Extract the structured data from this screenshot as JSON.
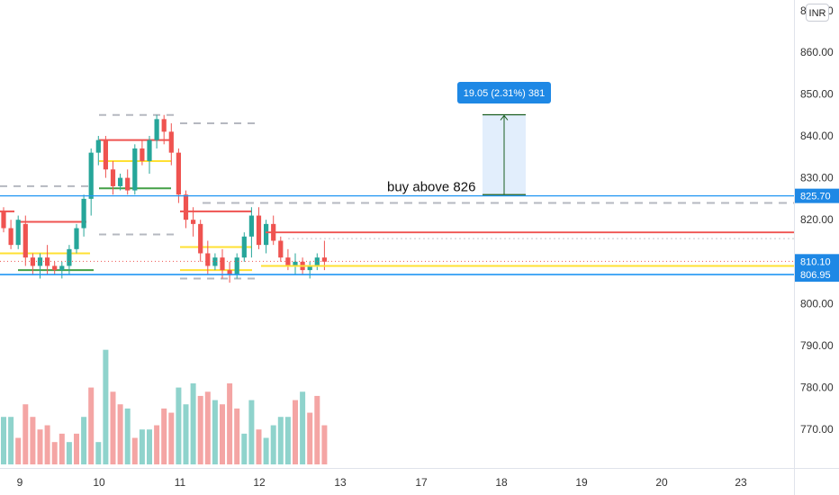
{
  "currency_label": "INR",
  "annotation_text": "buy above 826",
  "measure_label": "19.05 (2.31%) 381",
  "colors": {
    "up": "#26a69a",
    "down": "#ef5350",
    "vol_up": "#8fd3cc",
    "vol_down": "#f4a5a4",
    "hline_blue": "#2196f3",
    "hline_red": "#ef5350",
    "hline_yellow": "#ffe033",
    "measure_fill": "#dbeafb",
    "measure_arrow": "#1b5e20",
    "label_blue": "#1e88e5"
  },
  "chart_data": {
    "type": "candlestick",
    "y_axis": {
      "ticks": [
        "860.00",
        "850.00",
        "840.00",
        "830.00",
        "820.00",
        "810.00",
        "800.00",
        "790.00",
        "780.00",
        "770.00"
      ],
      "tick_values": [
        860,
        850,
        840,
        830,
        820,
        810,
        800,
        790,
        780,
        770
      ],
      "cut_top_label": "870.00"
    },
    "x_axis": {
      "labels": [
        "9",
        "10",
        "11",
        "12",
        "13",
        "17",
        "18",
        "19",
        "20",
        "23"
      ]
    },
    "price_labels": [
      {
        "text": "825.70",
        "value": 825.7
      },
      {
        "text": "810.10",
        "value": 810.1
      },
      {
        "text": "806.95",
        "value": 806.95
      }
    ],
    "measure": {
      "from": 826.0,
      "to": 845.05,
      "change": 19.05,
      "percent": 2.31,
      "bars": 381
    },
    "horizontal_lines": [
      {
        "value": 825.7,
        "color": "blue"
      },
      {
        "value": 806.95,
        "color": "blue"
      },
      {
        "value": 817.0,
        "color": "red"
      },
      {
        "value": 810.1,
        "color": "red-dotted"
      },
      {
        "value": 809.0,
        "color": "yellow"
      },
      {
        "value": 824.0,
        "color": "gray-dashed"
      },
      {
        "value": 815.5,
        "color": "gray-dotted"
      }
    ],
    "candles": [
      [
        822,
        823,
        817,
        818
      ],
      [
        818,
        820,
        813,
        814
      ],
      [
        814,
        821,
        813,
        820
      ],
      [
        819,
        821,
        809,
        811
      ],
      [
        811,
        812,
        807,
        809
      ],
      [
        809,
        812,
        806,
        811
      ],
      [
        811,
        814,
        807,
        809
      ],
      [
        809,
        810,
        807,
        808
      ],
      [
        808,
        810,
        806,
        809
      ],
      [
        809,
        814,
        807,
        813
      ],
      [
        813,
        819,
        812,
        818
      ],
      [
        818,
        826,
        816,
        825
      ],
      [
        825,
        837,
        821,
        836
      ],
      [
        836,
        840,
        833,
        839
      ],
      [
        839,
        840,
        830,
        832
      ],
      [
        832,
        834,
        826,
        828
      ],
      [
        828,
        831,
        827,
        830
      ],
      [
        830,
        832,
        826,
        827
      ],
      [
        827,
        838,
        826,
        837
      ],
      [
        837,
        839,
        833,
        834
      ],
      [
        834,
        840,
        831,
        839
      ],
      [
        839,
        845,
        837,
        844
      ],
      [
        844,
        845,
        838,
        841
      ],
      [
        841,
        843,
        833,
        836
      ],
      [
        836,
        837,
        824,
        826
      ],
      [
        826,
        827,
        818,
        820
      ],
      [
        820,
        823,
        816,
        819
      ],
      [
        819,
        820,
        810,
        812
      ],
      [
        812,
        815,
        807,
        809
      ],
      [
        809,
        812,
        808,
        811
      ],
      [
        811,
        813,
        806,
        808
      ],
      [
        808,
        810,
        805,
        807
      ],
      [
        807,
        812,
        806,
        811
      ],
      [
        811,
        817,
        810,
        816
      ],
      [
        816,
        823,
        811,
        821
      ],
      [
        821,
        823,
        813,
        814
      ],
      [
        814,
        820,
        812,
        819
      ],
      [
        819,
        821,
        814,
        815
      ],
      [
        815,
        816,
        810,
        811
      ],
      [
        811,
        813,
        808,
        809
      ],
      [
        809,
        812,
        807,
        810
      ],
      [
        810,
        811,
        807,
        808
      ],
      [
        808,
        810,
        806,
        809
      ],
      [
        809,
        812,
        808,
        811
      ],
      [
        811,
        815,
        808,
        810
      ]
    ],
    "volumes": [
      [
        773,
        1
      ],
      [
        773,
        1
      ],
      [
        768,
        0
      ],
      [
        776,
        0
      ],
      [
        773,
        0
      ],
      [
        770,
        0
      ],
      [
        771,
        0
      ],
      [
        767,
        0
      ],
      [
        769,
        0
      ],
      [
        767,
        1
      ],
      [
        769,
        0
      ],
      [
        773,
        1
      ],
      [
        780,
        0
      ],
      [
        767,
        1
      ],
      [
        789,
        1
      ],
      [
        779,
        0
      ],
      [
        776,
        0
      ],
      [
        775,
        1
      ],
      [
        768,
        0
      ],
      [
        770,
        1
      ],
      [
        770,
        1
      ],
      [
        771,
        0
      ],
      [
        775,
        0
      ],
      [
        774,
        0
      ],
      [
        780,
        1
      ],
      [
        776,
        1
      ],
      [
        781,
        1
      ],
      [
        778,
        0
      ],
      [
        779,
        0
      ],
      [
        777,
        1
      ],
      [
        776,
        0
      ],
      [
        781,
        0
      ],
      [
        775,
        0
      ],
      [
        769,
        1
      ],
      [
        777,
        1
      ],
      [
        770,
        0
      ],
      [
        768,
        1
      ],
      [
        771,
        1
      ],
      [
        773,
        1
      ],
      [
        773,
        1
      ],
      [
        777,
        0
      ],
      [
        779,
        1
      ],
      [
        774,
        0
      ],
      [
        778,
        0
      ],
      [
        771,
        0
      ]
    ]
  }
}
